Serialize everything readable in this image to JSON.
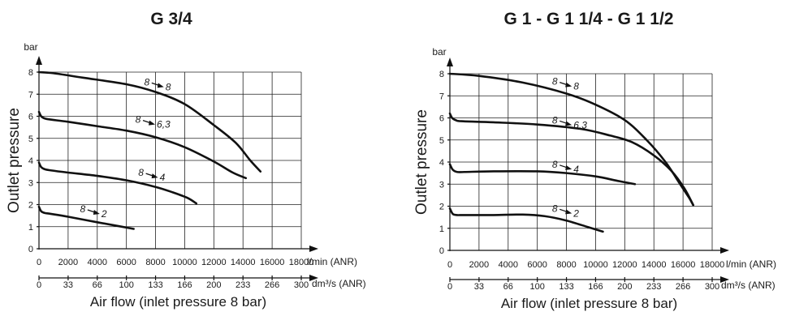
{
  "chart_data": [
    {
      "type": "line",
      "title": "G 3/4",
      "y_unit": "bar",
      "ylabel": "Outlet pressure",
      "x_unit": "l/min (ANR)",
      "x2_unit": "dm³/s (ANR)",
      "xlabel": "Air flow (inlet pressure 8 bar)",
      "xlim": [
        0,
        18000
      ],
      "ylim": [
        0,
        8
      ],
      "x_ticks": [
        "0",
        "2000",
        "4000",
        "6000",
        "8000",
        "10000",
        "12000",
        "14000",
        "16000",
        "18000"
      ],
      "x2_ticks": [
        "0",
        "33",
        "66",
        "100",
        "133",
        "166",
        "200",
        "233",
        "266",
        "300"
      ],
      "y_ticks": [
        "0",
        "1",
        "2",
        "3",
        "4",
        "5",
        "6",
        "7",
        "8"
      ],
      "grid": true,
      "series": [
        {
          "name": "8 → 8",
          "label_text": "8",
          "label_target": "8",
          "x": [
            0,
            1000,
            3000,
            6000,
            8000,
            10000,
            12000,
            13500,
            14500,
            15200
          ],
          "y": [
            8.0,
            7.95,
            7.75,
            7.45,
            7.1,
            6.55,
            5.6,
            4.8,
            4.0,
            3.5
          ],
          "label_at": [
            7400,
            7.4
          ]
        },
        {
          "name": "8 → 6,3",
          "label_text": "8",
          "label_target": "6,3",
          "x": [
            0,
            150,
            400,
            800,
            2000,
            4000,
            6000,
            8000,
            10000,
            12000,
            13300,
            14200
          ],
          "y": [
            6.2,
            6.0,
            5.9,
            5.85,
            5.75,
            5.55,
            5.35,
            5.05,
            4.6,
            3.95,
            3.45,
            3.2
          ],
          "label_at": [
            6800,
            5.7
          ]
        },
        {
          "name": "8 → 4",
          "label_text": "8",
          "label_target": "4",
          "x": [
            0,
            150,
            400,
            800,
            2000,
            4000,
            6000,
            8000,
            9200,
            10200,
            10800
          ],
          "y": [
            3.9,
            3.7,
            3.6,
            3.55,
            3.45,
            3.3,
            3.1,
            2.8,
            2.55,
            2.3,
            2.05
          ],
          "label_at": [
            7000,
            3.3
          ]
        },
        {
          "name": "8 → 2",
          "label_text": "8",
          "label_target": "2",
          "x": [
            0,
            150,
            400,
            800,
            2000,
            4000,
            5500,
            6500
          ],
          "y": [
            1.9,
            1.7,
            1.62,
            1.58,
            1.45,
            1.2,
            1.02,
            0.9
          ],
          "label_at": [
            3000,
            1.65
          ]
        }
      ]
    },
    {
      "type": "line",
      "title": "G 1 - G 1 1/4 - G 1 1/2",
      "y_unit": "bar",
      "ylabel": "Outlet pressure",
      "x_unit": "l/min (ANR)",
      "x2_unit": "dm³/s (ANR)",
      "xlabel": "Air flow (inlet pressure 8 bar)",
      "xlim": [
        0,
        18000
      ],
      "ylim": [
        0,
        8
      ],
      "x_ticks": [
        "0",
        "2000",
        "4000",
        "6000",
        "8000",
        "10000",
        "12000",
        "14000",
        "16000",
        "18000"
      ],
      "x2_ticks": [
        "0",
        "33",
        "66",
        "100",
        "133",
        "166",
        "200",
        "233",
        "266",
        "300"
      ],
      "y_ticks": [
        "0",
        "1",
        "2",
        "3",
        "4",
        "5",
        "6",
        "7",
        "8"
      ],
      "grid": true,
      "series": [
        {
          "name": "8 → 8",
          "label_text": "8",
          "label_target": "8",
          "x": [
            0,
            2000,
            5000,
            8000,
            10000,
            12000,
            13500,
            14800,
            15800,
            16400,
            16700
          ],
          "y": [
            8.0,
            7.9,
            7.6,
            7.1,
            6.6,
            5.9,
            5.0,
            4.0,
            3.0,
            2.4,
            2.05
          ],
          "label_at": [
            7200,
            7.5
          ]
        },
        {
          "name": "8 → 6,3",
          "label_text": "8",
          "label_target": "6,3",
          "x": [
            0,
            150,
            400,
            800,
            3000,
            6000,
            9000,
            11000,
            12500,
            14000,
            15200,
            16100,
            16700
          ],
          "y": [
            6.2,
            6.0,
            5.9,
            5.85,
            5.8,
            5.7,
            5.5,
            5.2,
            4.9,
            4.3,
            3.6,
            2.8,
            2.05
          ],
          "label_at": [
            7200,
            5.75
          ]
        },
        {
          "name": "8 → 4",
          "label_text": "8",
          "label_target": "4",
          "x": [
            0,
            200,
            500,
            1000,
            3000,
            6000,
            8000,
            10000,
            11500,
            12700
          ],
          "y": [
            3.9,
            3.65,
            3.55,
            3.55,
            3.58,
            3.58,
            3.5,
            3.35,
            3.15,
            3.0
          ],
          "label_at": [
            7200,
            3.75
          ]
        },
        {
          "name": "8 → 2",
          "label_text": "8",
          "label_target": "2",
          "x": [
            0,
            200,
            500,
            1000,
            3000,
            5000,
            6500,
            8000,
            9500,
            10500
          ],
          "y": [
            1.9,
            1.65,
            1.6,
            1.6,
            1.6,
            1.62,
            1.55,
            1.35,
            1.05,
            0.85
          ],
          "label_at": [
            7200,
            1.75
          ]
        }
      ]
    }
  ]
}
